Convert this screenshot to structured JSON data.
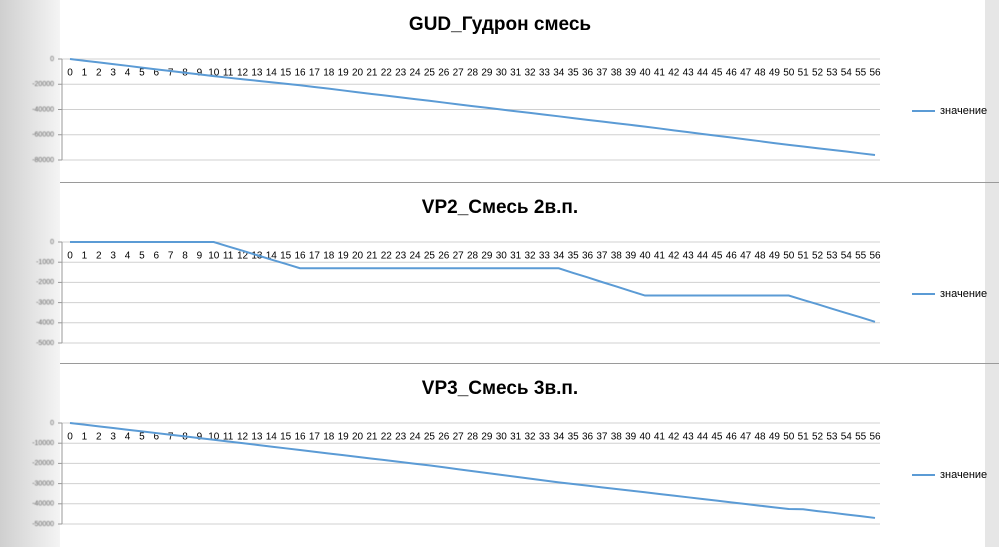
{
  "chart_data": [
    {
      "type": "line",
      "title": "GUD_Гудрон смесь",
      "categories": [
        "0",
        "1",
        "2",
        "3",
        "4",
        "5",
        "6",
        "7",
        "8",
        "9",
        "10",
        "11",
        "12",
        "13",
        "14",
        "15",
        "16",
        "17",
        "18",
        "19",
        "20",
        "21",
        "22",
        "23",
        "24",
        "25",
        "26",
        "27",
        "28",
        "29",
        "30",
        "31",
        "32",
        "33",
        "34",
        "35",
        "36",
        "37",
        "38",
        "39",
        "40",
        "41",
        "42",
        "43",
        "44",
        "45",
        "46",
        "47",
        "48",
        "49",
        "50",
        "51",
        "52",
        "53",
        "54",
        "55",
        "56"
      ],
      "series": [
        {
          "name": "значение",
          "color": "#5b9bd5",
          "values": [
            0,
            -1400,
            -2700,
            -4100,
            -5400,
            -6800,
            -8200,
            -9500,
            -10900,
            -12200,
            -13600,
            -14800,
            -16000,
            -17200,
            -18400,
            -19600,
            -20800,
            -22200,
            -23500,
            -24900,
            -26300,
            -27700,
            -29000,
            -30400,
            -31800,
            -33100,
            -34500,
            -35900,
            -37300,
            -38600,
            -40000,
            -41400,
            -42700,
            -44100,
            -45400,
            -46800,
            -48200,
            -49500,
            -50900,
            -52200,
            -53600,
            -55000,
            -56500,
            -57900,
            -59400,
            -60800,
            -62200,
            -63700,
            -65100,
            -66600,
            -68000,
            -69300,
            -70700,
            -72000,
            -73300,
            -74700,
            -76000
          ]
        }
      ],
      "ylim": [
        -80000,
        0
      ],
      "yticks": [
        0,
        -20000,
        -40000,
        -60000,
        -80000
      ],
      "grid": true,
      "legend": "right"
    },
    {
      "type": "line",
      "title": "VP2_Смесь 2в.п.",
      "categories": [
        "0",
        "1",
        "2",
        "3",
        "4",
        "5",
        "6",
        "7",
        "8",
        "9",
        "10",
        "11",
        "12",
        "13",
        "14",
        "15",
        "16",
        "17",
        "18",
        "19",
        "20",
        "21",
        "22",
        "23",
        "24",
        "25",
        "26",
        "27",
        "28",
        "29",
        "30",
        "31",
        "32",
        "33",
        "34",
        "35",
        "36",
        "37",
        "38",
        "39",
        "40",
        "41",
        "42",
        "43",
        "44",
        "45",
        "46",
        "47",
        "48",
        "49",
        "50",
        "51",
        "52",
        "53",
        "54",
        "55",
        "56"
      ],
      "series": [
        {
          "name": "значение",
          "color": "#5b9bd5",
          "values": [
            0,
            0,
            0,
            0,
            0,
            0,
            0,
            0,
            0,
            0,
            0,
            -220,
            -430,
            -650,
            -870,
            -1080,
            -1300,
            -1300,
            -1300,
            -1300,
            -1300,
            -1300,
            -1300,
            -1300,
            -1300,
            -1300,
            -1300,
            -1300,
            -1300,
            -1300,
            -1300,
            -1300,
            -1300,
            -1300,
            -1300,
            -1530,
            -1750,
            -1980,
            -2200,
            -2430,
            -2650,
            -2650,
            -2650,
            -2650,
            -2650,
            -2650,
            -2650,
            -2650,
            -2650,
            -2650,
            -2650,
            -2870,
            -3080,
            -3300,
            -3520,
            -3730,
            -3950
          ]
        }
      ],
      "ylim": [
        -5000,
        0
      ],
      "yticks": [
        0,
        -1000,
        -2000,
        -3000,
        -4000,
        -5000
      ],
      "grid": true,
      "legend": "right"
    },
    {
      "type": "line",
      "title": "VP3_Смесь 3в.п.",
      "categories": [
        "0",
        "1",
        "2",
        "3",
        "4",
        "5",
        "6",
        "7",
        "8",
        "9",
        "10",
        "11",
        "12",
        "13",
        "14",
        "15",
        "16",
        "17",
        "18",
        "19",
        "20",
        "21",
        "22",
        "23",
        "24",
        "25",
        "26",
        "27",
        "28",
        "29",
        "30",
        "31",
        "32",
        "33",
        "34",
        "35",
        "36",
        "37",
        "38",
        "39",
        "40",
        "41",
        "42",
        "43",
        "44",
        "45",
        "46",
        "47",
        "48",
        "49",
        "50",
        "51",
        "52",
        "53",
        "54",
        "55",
        "56"
      ],
      "series": [
        {
          "name": "значение",
          "color": "#5b9bd5",
          "values": [
            0,
            -830,
            -1660,
            -2490,
            -3320,
            -4150,
            -4980,
            -5810,
            -6640,
            -7470,
            -8300,
            -9150,
            -9990,
            -10840,
            -11690,
            -12530,
            -13380,
            -14230,
            -15080,
            -15920,
            -16770,
            -17620,
            -18460,
            -19310,
            -20150,
            -21000,
            -21930,
            -22870,
            -23800,
            -24730,
            -25670,
            -26600,
            -27530,
            -28470,
            -29400,
            -30220,
            -31030,
            -31850,
            -32670,
            -33480,
            -34300,
            -35130,
            -35960,
            -36790,
            -37620,
            -38450,
            -39280,
            -40110,
            -40940,
            -41770,
            -42600,
            -42700,
            -43600,
            -44400,
            -45300,
            -46100,
            -47000
          ]
        }
      ],
      "ylim": [
        -50000,
        0
      ],
      "yticks": [
        0,
        -10000,
        -20000,
        -30000,
        -40000,
        -50000
      ],
      "grid": true,
      "legend": "right"
    }
  ]
}
